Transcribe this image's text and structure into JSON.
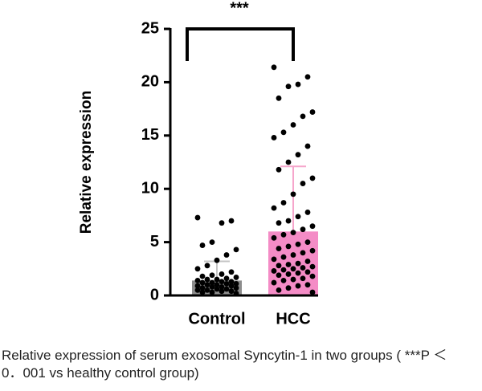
{
  "chart_data": {
    "type": "bar",
    "annotation": "***",
    "ylabel": "Relative expression",
    "categories": [
      "Control",
      "HCC"
    ],
    "values": [
      1.4,
      6.0
    ],
    "errors": [
      1.8,
      6.1
    ],
    "colors": [
      "#8c8c8c",
      "#f48cc6"
    ],
    "error_colors": [
      "#c4c4c4",
      "#f6a6cc"
    ],
    "points": [
      [
        7.3,
        7.0,
        6.8,
        5.0,
        4.7,
        4.3,
        3.8,
        3.3,
        2.8,
        2.5,
        2.2,
        2.0,
        1.9,
        1.8,
        1.7,
        1.6,
        1.5,
        1.5,
        1.4,
        1.3,
        1.3,
        1.2,
        1.2,
        1.1,
        1.1,
        1.0,
        1.0,
        0.9,
        0.9,
        0.8,
        0.8,
        0.7,
        0.7,
        0.6,
        0.6,
        0.5,
        0.5,
        0.4,
        0.4,
        0.3,
        0.3,
        0.2
      ],
      [
        21.4,
        20.5,
        19.8,
        19.6,
        18.5,
        17.2,
        16.8,
        16.0,
        15.3,
        14.8,
        14.0,
        13.2,
        12.5,
        11.8,
        11.0,
        10.5,
        9.5,
        8.7,
        8.2,
        7.8,
        7.4,
        7.0,
        6.8,
        6.5,
        6.2,
        5.9,
        5.7,
        5.4,
        5.0,
        4.8,
        4.6,
        4.4,
        4.2,
        4.0,
        3.8,
        3.6,
        3.4,
        3.2,
        3.0,
        2.9,
        2.8,
        2.7,
        2.6,
        2.5,
        2.4,
        2.3,
        2.2,
        2.1,
        2.0,
        1.9,
        1.8,
        1.6,
        1.5,
        1.4,
        1.2,
        1.0,
        0.9,
        0.7,
        0.5,
        0.3
      ]
    ],
    "point_color": "#000000",
    "ylim": [
      0,
      25
    ],
    "yticks": [
      0,
      5,
      10,
      15,
      20,
      25
    ],
    "caption": "Relative expression of serum exosomal Syncytin-1 in two groups ( ***P ＜0．001 vs healthy control group)"
  }
}
